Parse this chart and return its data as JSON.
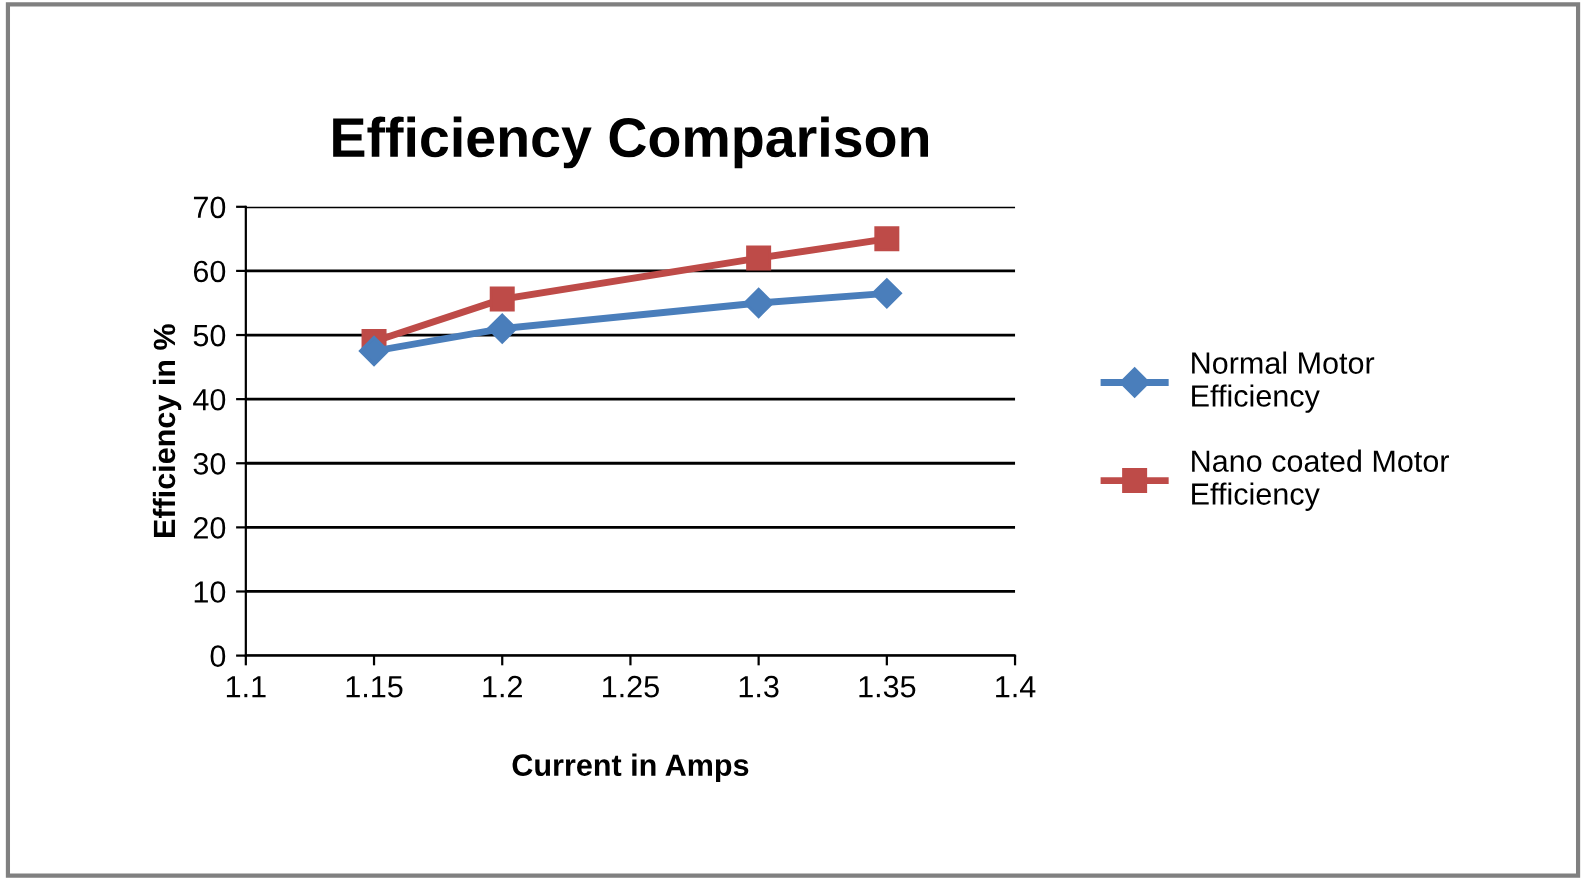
{
  "chart_data": {
    "type": "line",
    "title": "Efficiency Comparison",
    "xlabel": "Current in Amps",
    "ylabel": "Efficiency in %",
    "x": [
      1.15,
      1.2,
      1.3,
      1.35
    ],
    "series": [
      {
        "name": "Normal Motor\nEfficiency",
        "color": "#4a7ebb",
        "marker": "diamond",
        "values": [
          47.5,
          51,
          55,
          56.5
        ]
      },
      {
        "name": "Nano coated Motor\nEfficiency",
        "color": "#be4b48",
        "marker": "square",
        "values": [
          49,
          55.6,
          62,
          65
        ]
      }
    ],
    "xlim": [
      1.1,
      1.4
    ],
    "xticks": [
      1.1,
      1.15,
      1.2,
      1.25,
      1.3,
      1.35,
      1.4
    ],
    "ylim": [
      0,
      70
    ],
    "yticks": [
      0,
      10,
      20,
      30,
      40,
      50,
      60,
      70
    ],
    "grid": "y",
    "legend": "right",
    "line_style": "solid"
  }
}
